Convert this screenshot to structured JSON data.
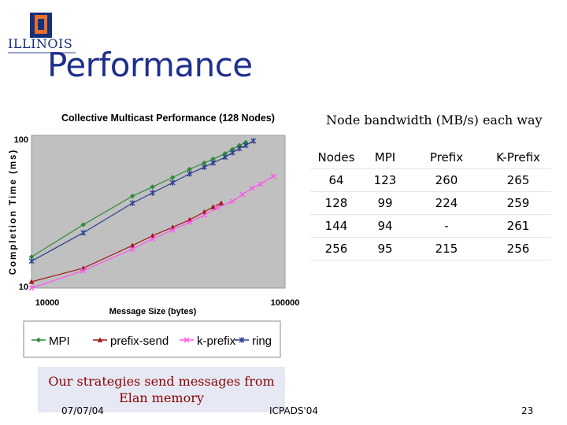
{
  "slide": {
    "logo_text": "ILLINOIS",
    "title": "Performance",
    "table_caption": "Node bandwidth (MB/s) each way",
    "strategy_note": "Our strategies send messages from Elan memory",
    "footer": {
      "date": "07/07/04",
      "conference": "ICPADS'04",
      "page": "23"
    }
  },
  "bandwidth_table": {
    "headers": [
      "Nodes",
      "MPI",
      "Prefix",
      "K-Prefix"
    ],
    "rows": [
      [
        "64",
        "123",
        "260",
        "265"
      ],
      [
        "128",
        "99",
        "224",
        "259"
      ],
      [
        "144",
        "94",
        "-",
        "261"
      ],
      [
        "256",
        "95",
        "215",
        "256"
      ]
    ]
  },
  "chart_data": {
    "type": "line",
    "title": "Collective Multicast Performance (128 Nodes)",
    "xlabel": "Message Size (bytes)",
    "ylabel": "Completion Time (ms)",
    "x_scale": "log",
    "y_scale": "log",
    "xlim": [
      10000,
      100000
    ],
    "ylim": [
      10,
      100
    ],
    "x_tick_labels": [
      "10000",
      "100000"
    ],
    "y_tick_labels": [
      "100",
      "10"
    ],
    "legend_position": "bottom",
    "colors": {
      "MPI": "#2e8b3c",
      "prefix-send": "#a01c1c",
      "k-prefix": "#ff55ee",
      "ring": "#2b3f8f"
    },
    "series": [
      {
        "name": "MPI",
        "x": [
          10000,
          16000,
          25000,
          30000,
          36000,
          42000,
          48000,
          52000,
          58000,
          62000,
          66000,
          70000
        ],
        "y": [
          16,
          26,
          40,
          46,
          53,
          60,
          66,
          70,
          76,
          81,
          86,
          90
        ]
      },
      {
        "name": "prefix-send",
        "x": [
          10000,
          16000,
          25000,
          30000,
          36000,
          42000,
          48000,
          52000,
          56000
        ],
        "y": [
          11,
          13.5,
          19,
          22,
          25,
          28,
          31.5,
          34,
          36
        ]
      },
      {
        "name": "k-prefix",
        "x": [
          10000,
          16000,
          25000,
          30000,
          36000,
          42000,
          48000,
          54000,
          62000,
          68000,
          74000,
          80000,
          90000
        ],
        "y": [
          10,
          13,
          18,
          21,
          24,
          27,
          30,
          33.5,
          37,
          41,
          45,
          48,
          54
        ]
      },
      {
        "name": "ring",
        "x": [
          10000,
          16000,
          25000,
          30000,
          36000,
          42000,
          48000,
          52000,
          58000,
          62000,
          66000,
          70000,
          75000
        ],
        "y": [
          15,
          23,
          36,
          42,
          49,
          56,
          62,
          66,
          72,
          77,
          82,
          86,
          92
        ]
      }
    ]
  }
}
